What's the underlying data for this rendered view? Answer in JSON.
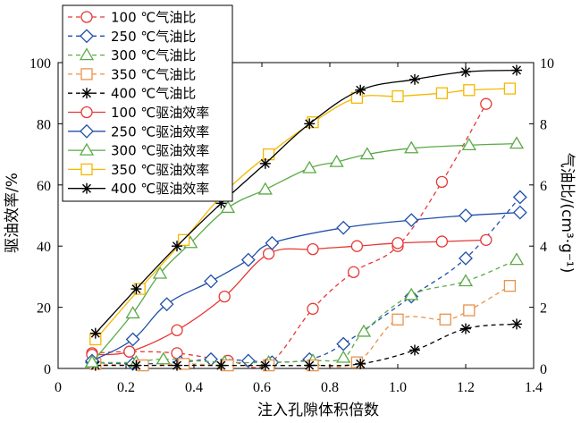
{
  "chart_data": {
    "type": "line",
    "xlabel": "注入孔隙体积倍数",
    "ylabel_left": "驱油效率/%",
    "ylabel_right": "气油比/(cm³·g⁻¹)",
    "xlim": [
      0,
      1.4
    ],
    "ylim_left": [
      0,
      100
    ],
    "ylim_right": [
      0,
      10
    ],
    "x_ticks": [
      "0",
      "0.2",
      "0.4",
      "0.6",
      "0.8",
      "1.0",
      "1.2",
      "1.4"
    ],
    "y_left_ticks": [
      "0",
      "20",
      "40",
      "60",
      "80",
      "100"
    ],
    "y_right_ticks": [
      "0",
      "2",
      "4",
      "6",
      "8",
      "10"
    ],
    "legend_position": "top-left",
    "series": [
      {
        "name": "100 ℃气油比",
        "axis": "right",
        "style": "dashed",
        "marker": "circle",
        "color": "#e53935",
        "x": [
          0.1,
          0.21,
          0.35,
          0.5,
          0.62,
          0.75,
          0.87,
          1.0,
          1.13,
          1.26
        ],
        "y": [
          0.5,
          0.55,
          0.5,
          0.25,
          0.15,
          1.95,
          3.15,
          4.0,
          6.1,
          8.65
        ]
      },
      {
        "name": "250 ℃气油比",
        "axis": "right",
        "style": "dashed",
        "marker": "diamond",
        "color": "#1f4fa8",
        "x": [
          0.1,
          0.22,
          0.36,
          0.45,
          0.56,
          0.63,
          0.74,
          0.84,
          1.04,
          1.2,
          1.36
        ],
        "y": [
          0.2,
          0.15,
          0.2,
          0.3,
          0.25,
          0.2,
          0.3,
          0.8,
          2.35,
          3.6,
          5.6
        ]
      },
      {
        "name": "300 ℃气油比",
        "axis": "right",
        "style": "dashed",
        "marker": "triangle",
        "color": "#5aaa46",
        "x": [
          0.1,
          0.23,
          0.31,
          0.49,
          0.62,
          0.75,
          0.84,
          0.9,
          1.04,
          1.2,
          1.35
        ],
        "y": [
          0.2,
          0.2,
          0.3,
          0.2,
          0.2,
          0.25,
          0.35,
          1.2,
          2.4,
          2.85,
          3.55
        ]
      },
      {
        "name": "350 ℃气油比",
        "axis": "right",
        "style": "dashed",
        "marker": "square",
        "color": "#e8924a",
        "x": [
          0.11,
          0.25,
          0.37,
          0.5,
          0.62,
          0.75,
          0.88,
          1.0,
          1.14,
          1.21,
          1.33
        ],
        "y": [
          0.15,
          0.1,
          0.15,
          0.1,
          0.1,
          0.1,
          0.2,
          1.6,
          1.6,
          1.9,
          2.7
        ]
      },
      {
        "name": "400 ℃气油比",
        "axis": "right",
        "style": "dashed",
        "marker": "asterisk",
        "color": "#000000",
        "x": [
          0.11,
          0.23,
          0.35,
          0.48,
          0.61,
          0.74,
          0.89,
          1.05,
          1.2,
          1.35
        ],
        "y": [
          0.1,
          0.1,
          0.1,
          0.1,
          0.1,
          0.1,
          0.15,
          0.6,
          1.3,
          1.45
        ]
      },
      {
        "name": "100 ℃驱油效率",
        "axis": "left",
        "style": "solid",
        "marker": "circle",
        "color": "#e53935",
        "x": [
          0.1,
          0.21,
          0.35,
          0.49,
          0.62,
          0.75,
          0.88,
          1.0,
          1.13,
          1.26
        ],
        "y": [
          4.5,
          5.5,
          12.5,
          23.5,
          37.5,
          39.0,
          40.0,
          41.0,
          41.5,
          42.0
        ]
      },
      {
        "name": "250 ℃驱油效率",
        "axis": "left",
        "style": "solid",
        "marker": "diamond",
        "color": "#1f4fa8",
        "x": [
          0.1,
          0.22,
          0.32,
          0.45,
          0.56,
          0.63,
          0.84,
          1.04,
          1.2,
          1.36
        ],
        "y": [
          2.5,
          9.5,
          21.0,
          28.5,
          35.5,
          41.0,
          46.0,
          48.5,
          50.0,
          51.0
        ]
      },
      {
        "name": "300 ℃驱油效率",
        "axis": "left",
        "style": "solid",
        "marker": "triangle",
        "color": "#5aaa46",
        "x": [
          0.1,
          0.22,
          0.3,
          0.39,
          0.5,
          0.61,
          0.74,
          0.82,
          0.91,
          1.04,
          1.21,
          1.35
        ],
        "y": [
          2.0,
          18.0,
          31.0,
          41.0,
          52.5,
          58.5,
          65.5,
          67.5,
          70.0,
          72.0,
          73.0,
          73.5
        ]
      },
      {
        "name": "350 ℃驱油效率",
        "axis": "left",
        "style": "solid",
        "marker": "square",
        "color": "#f5b800",
        "x": [
          0.11,
          0.24,
          0.37,
          0.49,
          0.62,
          0.75,
          0.88,
          1.0,
          1.13,
          1.21,
          1.33
        ],
        "y": [
          9.5,
          26.0,
          42.0,
          57.5,
          70.0,
          80.5,
          88.5,
          89.0,
          90.0,
          91.0,
          91.5
        ]
      },
      {
        "name": "400 ℃驱油效率",
        "axis": "left",
        "style": "solid",
        "marker": "asterisk",
        "color": "#000000",
        "x": [
          0.11,
          0.23,
          0.35,
          0.48,
          0.61,
          0.74,
          0.89,
          1.05,
          1.2,
          1.35
        ],
        "y": [
          11.5,
          26.0,
          40.0,
          54.0,
          67.0,
          80.0,
          91.0,
          94.5,
          97.0,
          97.5
        ]
      }
    ]
  }
}
